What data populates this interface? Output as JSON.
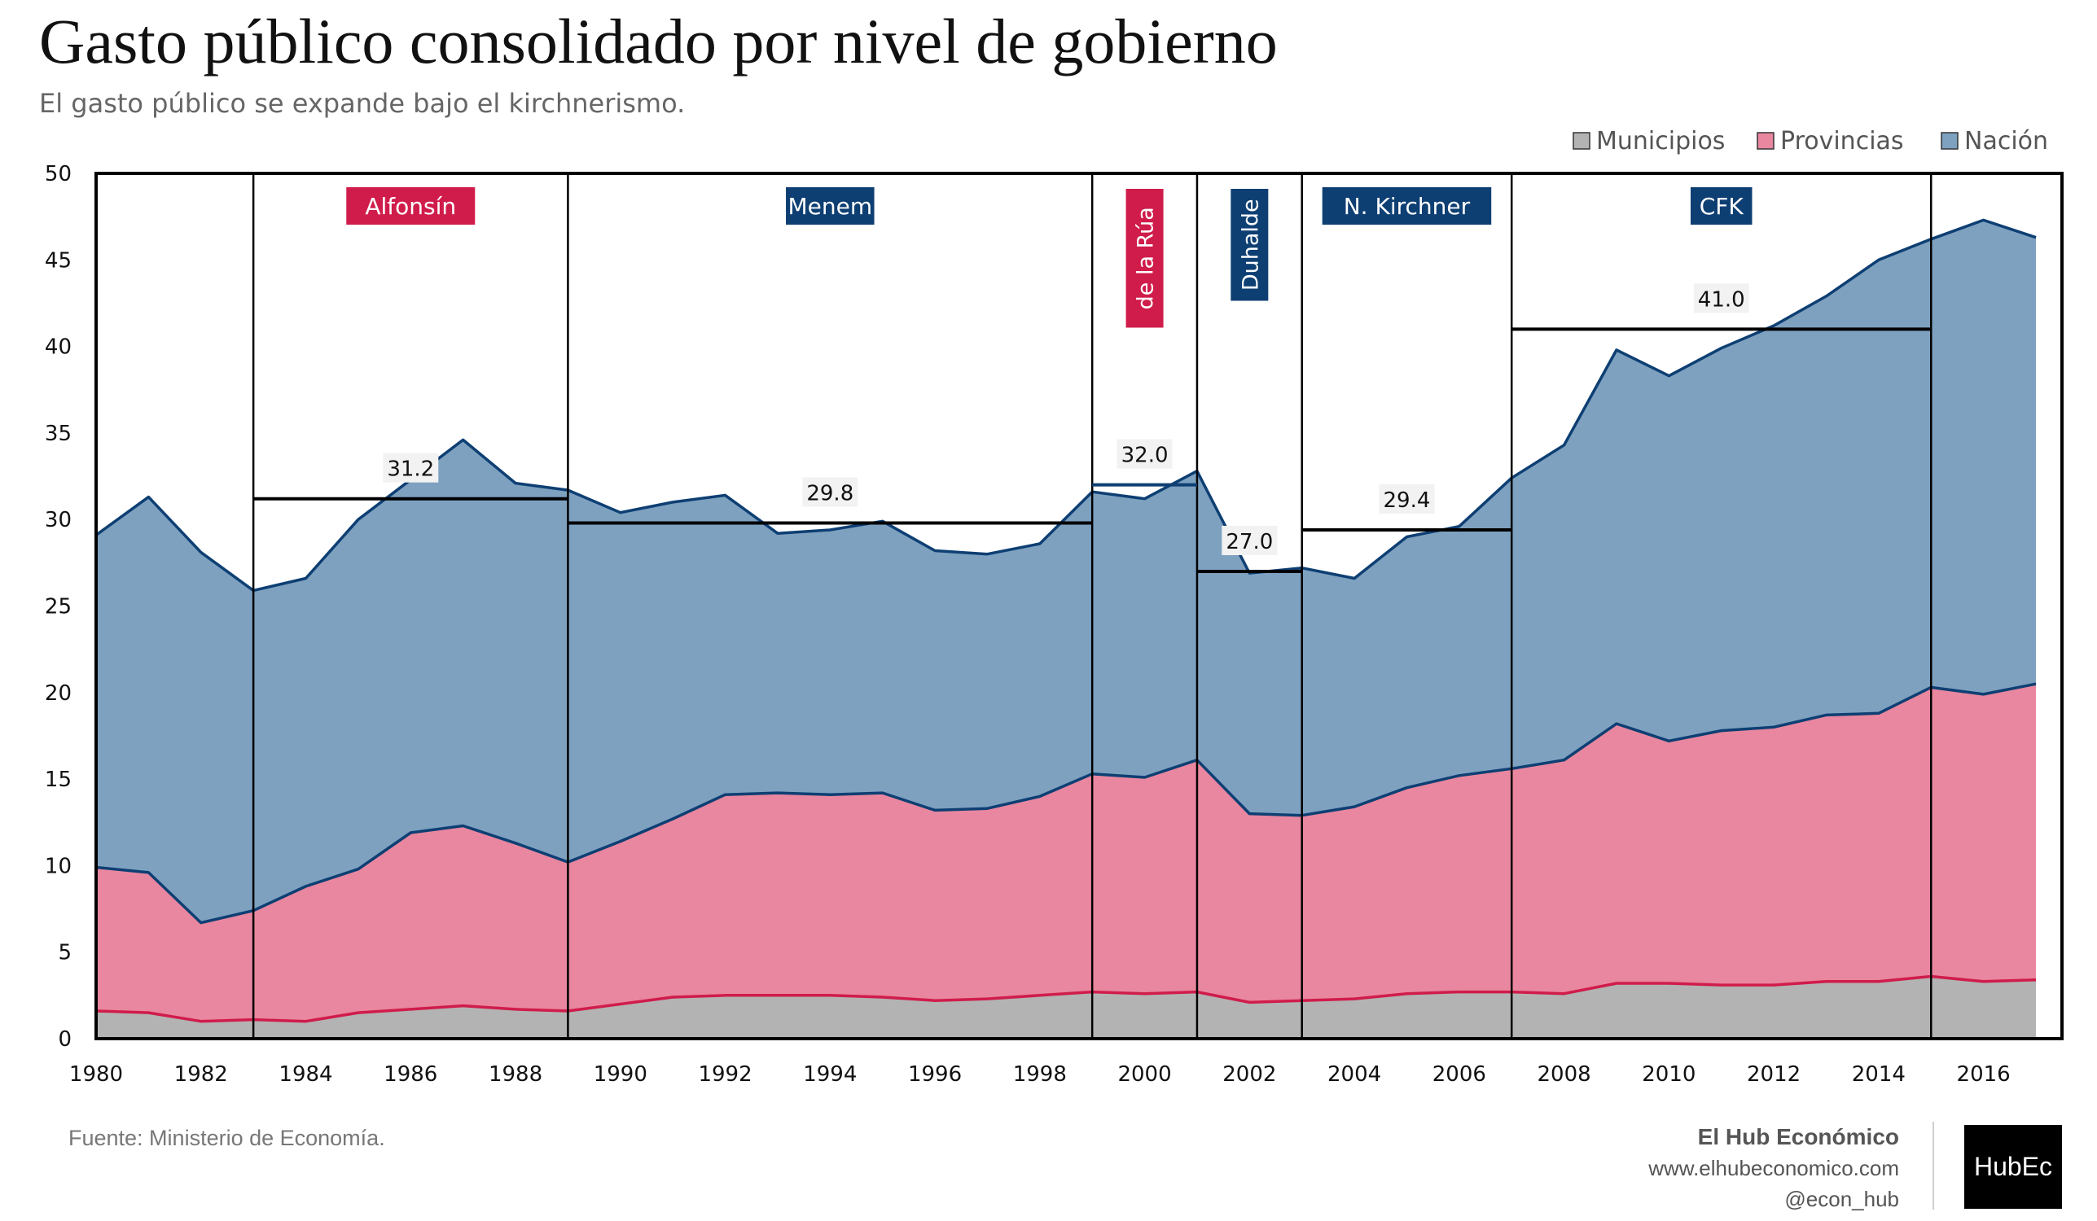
{
  "title": "Gasto público consolidado por nivel de gobierno",
  "subtitle": "El gasto público se expande bajo el kirchnerismo.",
  "source": "Fuente: Ministerio de Economía.",
  "brand": {
    "name": "El Hub Económico",
    "url": "www.elhubeconomico.com",
    "handle": "@econ_hub",
    "logo": "HubEc"
  },
  "chart_data": {
    "type": "area",
    "stacked": true,
    "years": [
      1980,
      1981,
      1982,
      1983,
      1984,
      1985,
      1986,
      1987,
      1988,
      1989,
      1990,
      1991,
      1992,
      1993,
      1994,
      1995,
      1996,
      1997,
      1998,
      1999,
      2000,
      2001,
      2002,
      2003,
      2004,
      2005,
      2006,
      2007,
      2008,
      2009,
      2010,
      2011,
      2012,
      2013,
      2014,
      2015,
      2016,
      2017
    ],
    "series": [
      {
        "name": "Municipios",
        "fill": "#b3b3b3",
        "line": "#d01c4b",
        "values": [
          1.6,
          1.5,
          1.0,
          1.1,
          1.0,
          1.5,
          1.7,
          1.9,
          1.7,
          1.6,
          2.0,
          2.4,
          2.5,
          2.5,
          2.5,
          2.4,
          2.2,
          2.3,
          2.5,
          2.7,
          2.6,
          2.7,
          2.1,
          2.2,
          2.3,
          2.6,
          2.7,
          2.7,
          2.6,
          3.2,
          3.2,
          3.1,
          3.1,
          3.3,
          3.3,
          3.6,
          3.3,
          3.4
        ]
      },
      {
        "name": "Provincias",
        "fill": "#e8879f",
        "line": "#0e3f73",
        "values": [
          8.3,
          8.1,
          5.7,
          6.3,
          7.8,
          8.3,
          10.2,
          10.4,
          9.6,
          8.6,
          9.4,
          10.3,
          11.6,
          11.7,
          11.6,
          11.8,
          11.0,
          11.0,
          11.5,
          12.6,
          12.5,
          13.4,
          10.9,
          10.7,
          11.1,
          11.9,
          12.5,
          12.9,
          13.5,
          15.0,
          14.0,
          14.7,
          14.9,
          15.4,
          15.5,
          16.7,
          16.6,
          17.1
        ]
      },
      {
        "name": "Nación",
        "fill": "#7ea1c0",
        "line": "#0e3f73",
        "values": [
          19.2,
          21.7,
          21.4,
          18.5,
          17.8,
          20.2,
          20.4,
          22.3,
          20.8,
          21.5,
          19.0,
          18.3,
          17.3,
          15.0,
          15.3,
          15.7,
          15.0,
          14.7,
          14.6,
          16.3,
          16.1,
          16.7,
          13.9,
          14.3,
          13.2,
          14.5,
          14.4,
          16.8,
          18.2,
          21.6,
          21.1,
          22.1,
          23.2,
          24.2,
          26.2,
          25.9,
          27.4,
          25.8
        ]
      }
    ],
    "ylim": [
      0,
      50
    ],
    "y_ticks": [
      0,
      5,
      10,
      15,
      20,
      25,
      30,
      35,
      40,
      45,
      50
    ],
    "x_ticks": [
      1980,
      1982,
      1984,
      1986,
      1988,
      1990,
      1992,
      1994,
      1996,
      1998,
      2000,
      2002,
      2004,
      2006,
      2008,
      2010,
      2012,
      2014,
      2016
    ],
    "legend_position": "top-right",
    "period_dividers": [
      1983,
      1989,
      1999,
      2001,
      2003,
      2007,
      2015
    ],
    "periods": [
      {
        "label": "Alfonsín",
        "start": 1983,
        "end": 1989,
        "color": "#d01c4b",
        "vertical": false,
        "avg": 31.2,
        "avg_label": "31.2"
      },
      {
        "label": "Menem",
        "start": 1989,
        "end": 1999,
        "color": "#0e3f73",
        "vertical": false,
        "avg": 29.8,
        "avg_label": "29.8"
      },
      {
        "label": "de la Rúa",
        "start": 1999,
        "end": 2001,
        "color": "#d01c4b",
        "vertical": true,
        "avg": 32.0,
        "avg_label": "32.0"
      },
      {
        "label": "Duhalde",
        "start": 2001,
        "end": 2003,
        "color": "#0e3f73",
        "vertical": true,
        "avg": 27.0,
        "avg_label": "27.0"
      },
      {
        "label": "N. Kirchner",
        "start": 2003,
        "end": 2007,
        "color": "#0e3f73",
        "vertical": false,
        "avg": 29.4,
        "avg_label": "29.4"
      },
      {
        "label": "CFK",
        "start": 2007,
        "end": 2015,
        "color": "#0e3f73",
        "vertical": false,
        "avg": 41.0,
        "avg_label": "41.0"
      }
    ]
  }
}
